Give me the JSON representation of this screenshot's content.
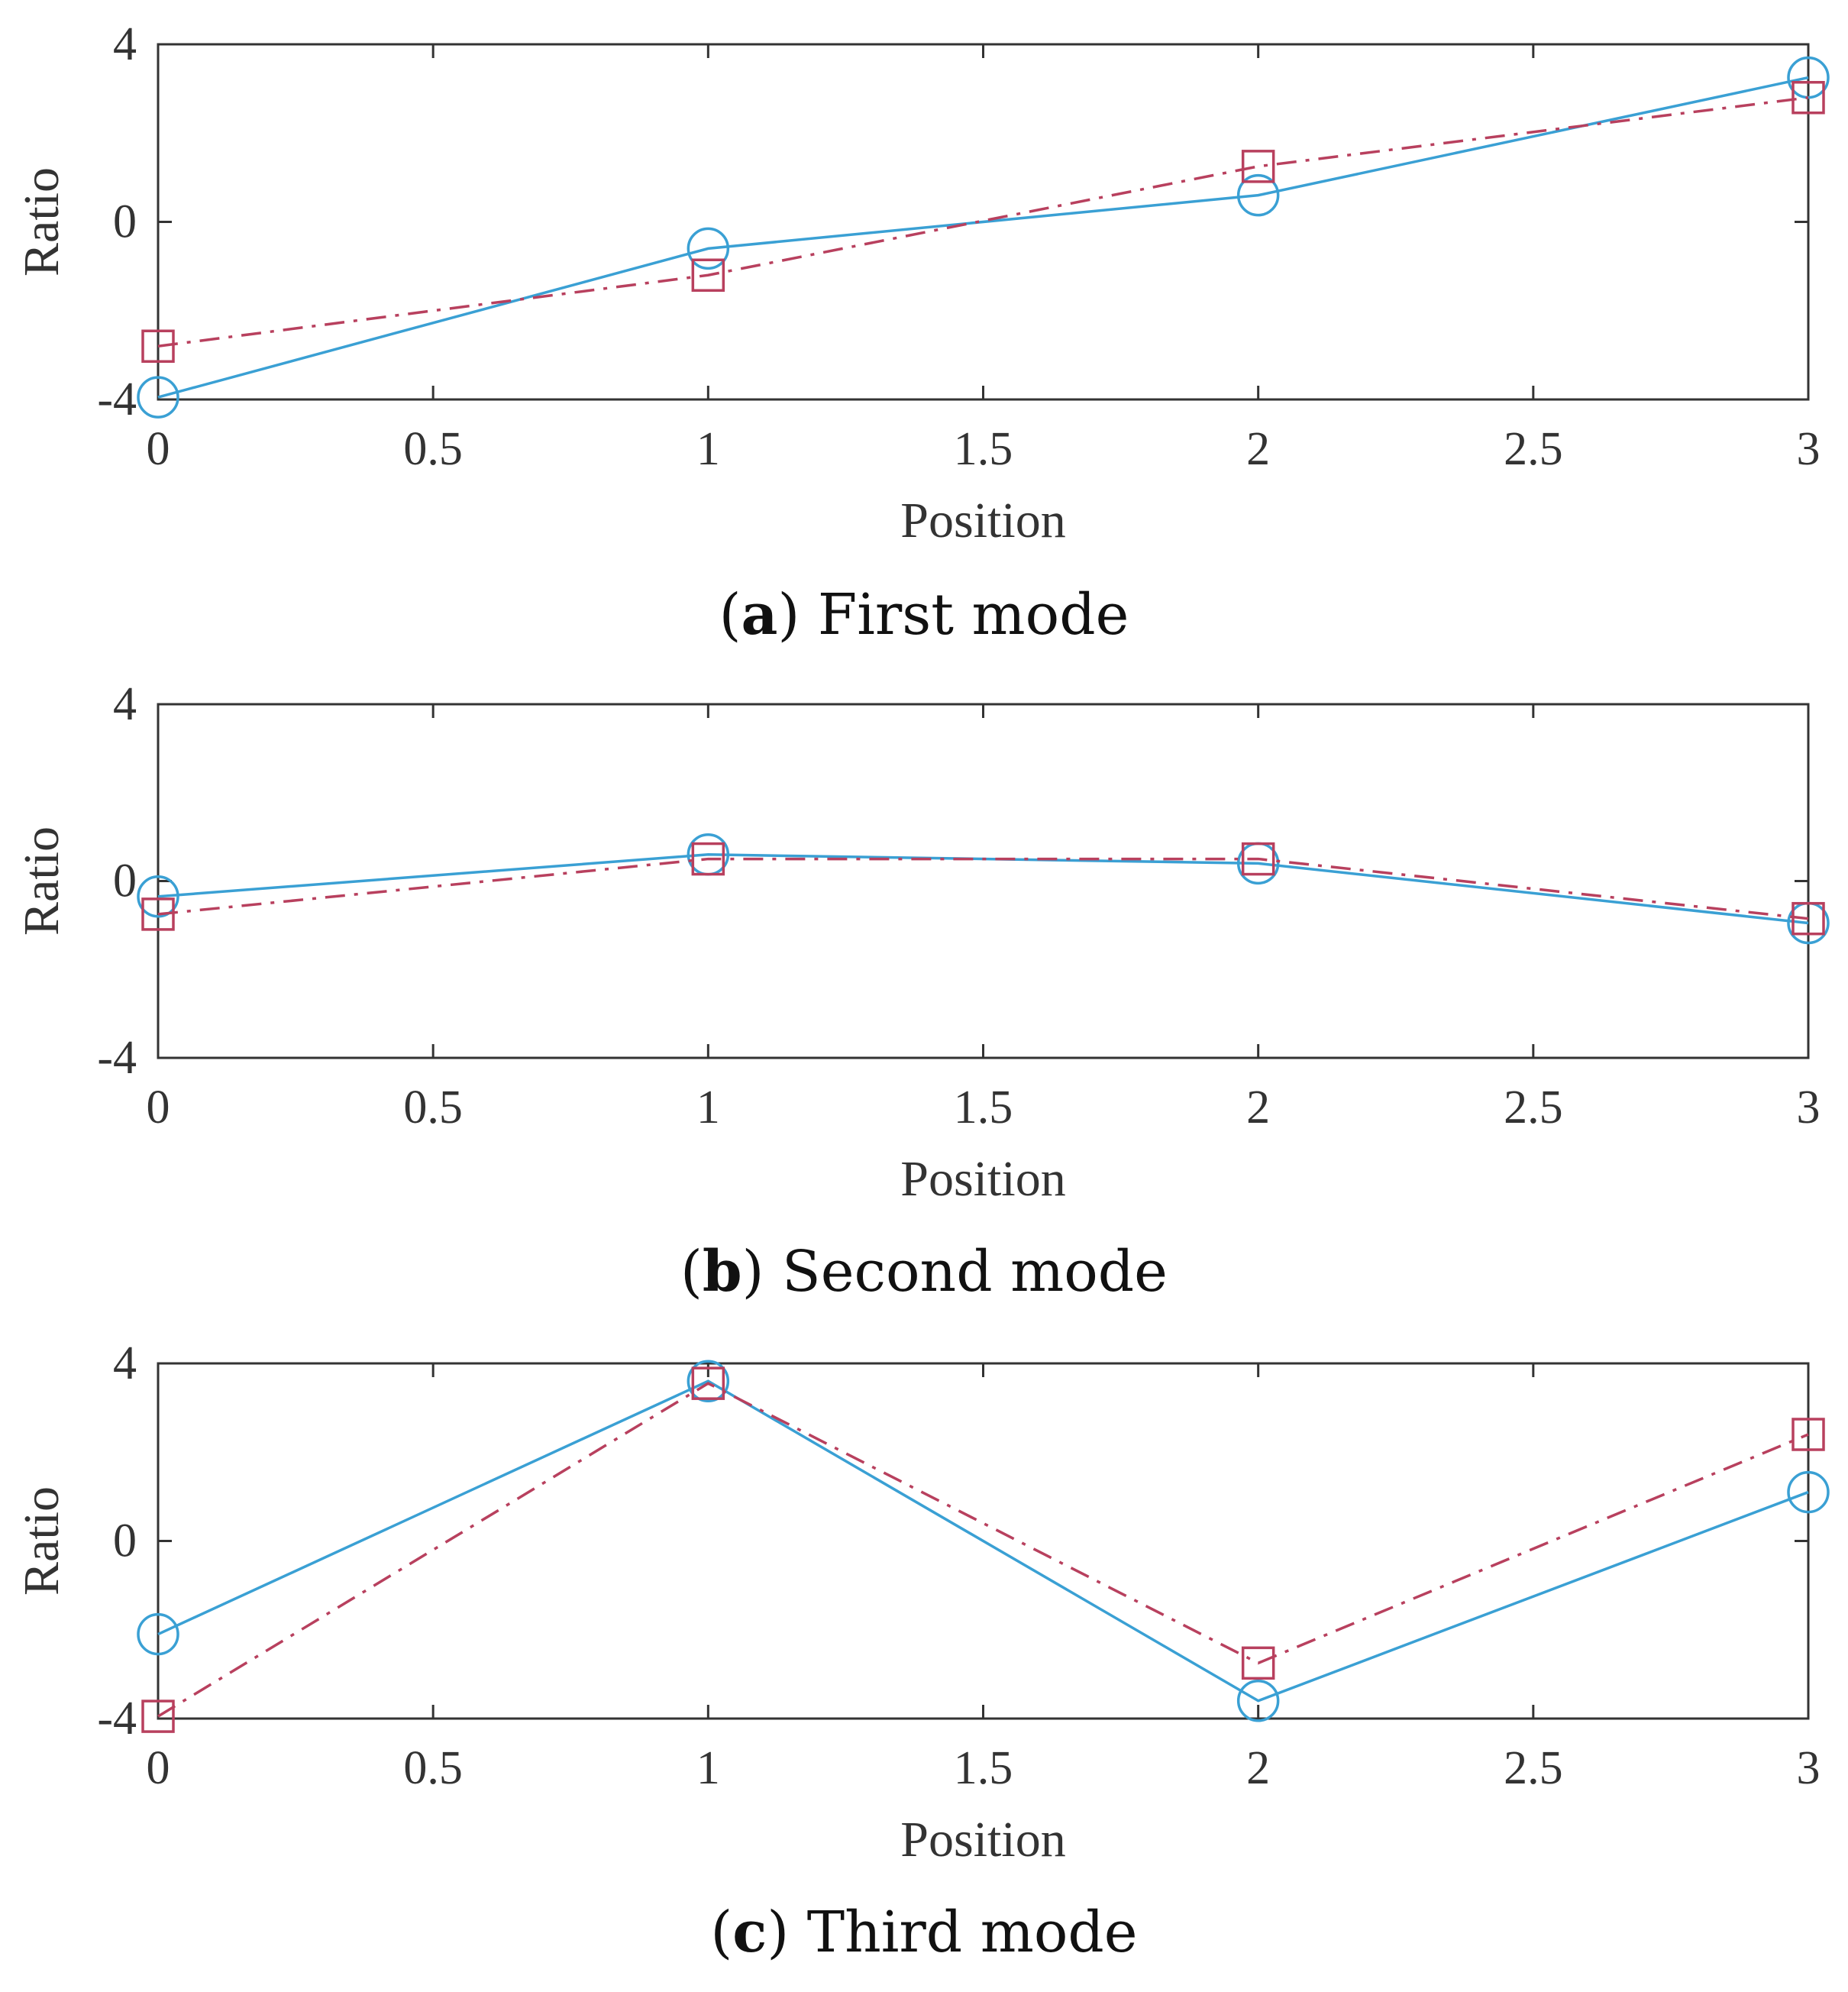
{
  "colors": {
    "series_solid": "#3aa0d4",
    "series_dashdot": "#b8405e",
    "axis": "#333333",
    "text": "#111111"
  },
  "chart_data": [
    {
      "type": "line",
      "caption_letter": "a",
      "caption_text": "First mode",
      "xlabel": "Position",
      "ylabel": "Ratio",
      "xlim": [
        0,
        3
      ],
      "ylim": [
        -4,
        4
      ],
      "xticks": [
        0,
        0.5,
        1,
        1.5,
        2,
        2.5,
        3
      ],
      "xtick_labels": [
        "0",
        "0.5",
        "1",
        "1.5",
        "2",
        "2.5",
        "3"
      ],
      "yticks": [
        -4,
        0,
        4
      ],
      "ytick_labels": [
        "-4",
        "0",
        "4"
      ],
      "grid": false,
      "x": [
        0,
        1,
        2,
        3
      ],
      "series": [
        {
          "name": "circle-solid",
          "marker": "circle",
          "line": "solid",
          "color": "#3aa0d4",
          "values": [
            -3.95,
            -0.6,
            0.6,
            3.25
          ]
        },
        {
          "name": "square-dashdot",
          "marker": "square",
          "line": "dashdot",
          "color": "#b8405e",
          "values": [
            -2.8,
            -1.2,
            1.25,
            2.8
          ]
        }
      ]
    },
    {
      "type": "line",
      "caption_letter": "b",
      "caption_text": "Second mode",
      "xlabel": "Position",
      "ylabel": "Ratio",
      "xlim": [
        0,
        3
      ],
      "ylim": [
        -4,
        4
      ],
      "xticks": [
        0,
        0.5,
        1,
        1.5,
        2,
        2.5,
        3
      ],
      "xtick_labels": [
        "0",
        "0.5",
        "1",
        "1.5",
        "2",
        "2.5",
        "3"
      ],
      "yticks": [
        -4,
        0,
        4
      ],
      "ytick_labels": [
        "-4",
        "0",
        "4"
      ],
      "grid": false,
      "x": [
        0,
        1,
        2,
        3
      ],
      "series": [
        {
          "name": "circle-solid",
          "marker": "circle",
          "line": "solid",
          "color": "#3aa0d4",
          "values": [
            -0.35,
            0.6,
            0.4,
            -0.95
          ]
        },
        {
          "name": "square-dashdot",
          "marker": "square",
          "line": "dashdot",
          "color": "#b8405e",
          "values": [
            -0.75,
            0.5,
            0.5,
            -0.85
          ]
        }
      ]
    },
    {
      "type": "line",
      "caption_letter": "c",
      "caption_text": "Third mode",
      "xlabel": "Position",
      "ylabel": "Ratio",
      "xlim": [
        0,
        3
      ],
      "ylim": [
        -4,
        4
      ],
      "xticks": [
        0,
        0.5,
        1,
        1.5,
        2,
        2.5,
        3
      ],
      "xtick_labels": [
        "0",
        "0.5",
        "1",
        "1.5",
        "2",
        "2.5",
        "3"
      ],
      "yticks": [
        -4,
        0,
        4
      ],
      "ytick_labels": [
        "-4",
        "0",
        "4"
      ],
      "grid": false,
      "x": [
        0,
        1,
        2,
        3
      ],
      "series": [
        {
          "name": "circle-solid",
          "marker": "circle",
          "line": "solid",
          "color": "#3aa0d4",
          "values": [
            -2.1,
            3.6,
            -3.6,
            1.1
          ]
        },
        {
          "name": "square-dashdot",
          "marker": "square",
          "line": "dashdot",
          "color": "#b8405e",
          "values": [
            -3.95,
            3.55,
            -2.75,
            2.4
          ]
        }
      ]
    }
  ]
}
